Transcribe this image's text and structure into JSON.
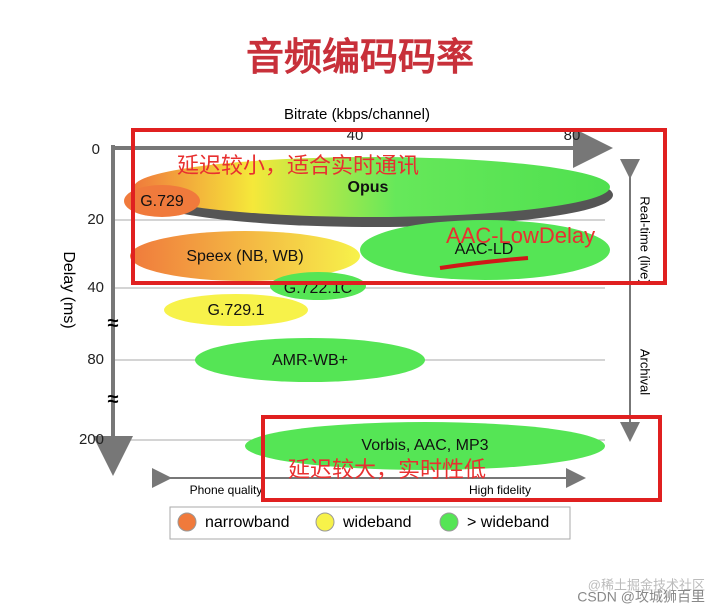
{
  "title": "音频编码码率",
  "x_axis": {
    "label": "Bitrate (kbps/channel)",
    "ticks": [
      "40",
      "80"
    ]
  },
  "y_axis": {
    "label": "Delay (ms)",
    "ticks": [
      "0",
      "20",
      "40",
      "80",
      "200"
    ],
    "breaks": [
      "≈",
      "≈"
    ]
  },
  "codecs": [
    {
      "label": "Opus"
    },
    {
      "label": "G.729"
    },
    {
      "label": "Speex (NB, WB)"
    },
    {
      "label": "AAC-LD"
    },
    {
      "label": "G.722.1C"
    },
    {
      "label": "G.729.1"
    },
    {
      "label": "AMR-WB+"
    },
    {
      "label": "Vorbis, AAC, MP3"
    }
  ],
  "side_labels": [
    "Real-time (live)",
    "Archival"
  ],
  "quality_labels": [
    "Phone quality",
    "High fidelity"
  ],
  "legend": [
    "narrowband",
    "wideband",
    "> wideband"
  ],
  "annotations": [
    "延迟较小，适合实时通讯",
    "AAC-LowDelay",
    "延迟较大，实时性低"
  ],
  "watermarks": [
    "@稀土掘金技术社区",
    "CSDN @攻城狮百里"
  ]
}
